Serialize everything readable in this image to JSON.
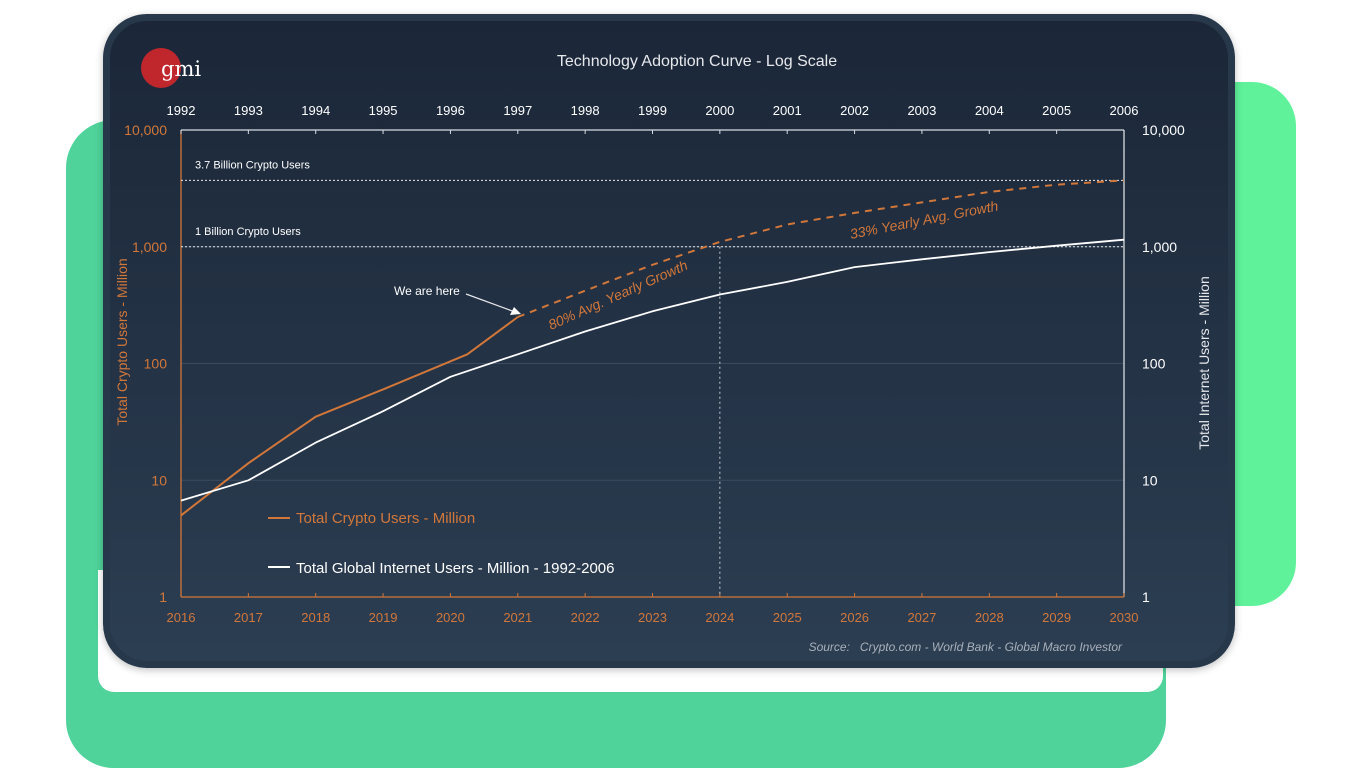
{
  "brand": {
    "logo_text": "gmi",
    "logo_color": "#c0272d"
  },
  "chart_data": {
    "type": "line",
    "title": "Technology Adoption Curve - Log Scale",
    "scale": "log",
    "ylim": [
      1,
      10000
    ],
    "yticks": [
      "1",
      "10",
      "100",
      "1,000",
      "10,000"
    ],
    "ytick_values": [
      1,
      10,
      100,
      1000,
      10000
    ],
    "ylabel_left": "Total Crypto Users - Million",
    "ylabel_right": "Total Internet Users - Million",
    "x_bottom": [
      "2016",
      "2017",
      "2018",
      "2019",
      "2020",
      "2021",
      "2022",
      "2023",
      "2024",
      "2025",
      "2026",
      "2027",
      "2028",
      "2029",
      "2030"
    ],
    "x_top": [
      "1992",
      "1993",
      "1994",
      "1995",
      "1996",
      "1997",
      "1998",
      "1999",
      "2000",
      "2001",
      "2002",
      "2003",
      "2004",
      "2005",
      "2006"
    ],
    "series": [
      {
        "name": "Total Crypto Users - Million",
        "color": "#d2773a",
        "axis": "bottom",
        "x": [
          2016,
          2017,
          2018,
          2019,
          2020.25,
          2021
        ],
        "values": [
          5,
          14,
          35,
          60,
          120,
          250
        ]
      },
      {
        "projection_of": "Total Crypto Users - Million",
        "color": "#d2773a",
        "style": "dashed",
        "axis": "bottom",
        "x": [
          2021,
          2022,
          2023,
          2024,
          2025,
          2026,
          2027,
          2028,
          2029,
          2030
        ],
        "values": [
          250,
          420,
          700,
          1100,
          1550,
          1950,
          2400,
          2950,
          3400,
          3700
        ]
      },
      {
        "name": "Total Global Internet Users - Million - 1992-2006",
        "color": "#ffffff",
        "axis": "top",
        "x": [
          1992,
          1993,
          1994,
          1995,
          1996,
          1997,
          1998,
          1999,
          2000,
          2001,
          2002,
          2003,
          2004,
          2005,
          2006
        ],
        "values": [
          6.7,
          10,
          21,
          39,
          77,
          120,
          188,
          280,
          390,
          500,
          670,
          780,
          900,
          1020,
          1150
        ]
      }
    ],
    "reference_lines": [
      {
        "label": "3.7 Billion Crypto Users",
        "value": 3700
      },
      {
        "label": "1 Billion Crypto Users",
        "value": 1000
      }
    ],
    "marker_line": {
      "x": 2024
    },
    "annotations": [
      {
        "text": "We are here",
        "points_to": [
          2021,
          250
        ]
      },
      {
        "text": "80% Avg. Yearly Growth"
      },
      {
        "text": "33% Yearly Avg. Growth"
      }
    ],
    "legend_position": "bottom-left",
    "source": "Source:   Crypto.com - World Bank - Global Macro Investor"
  }
}
